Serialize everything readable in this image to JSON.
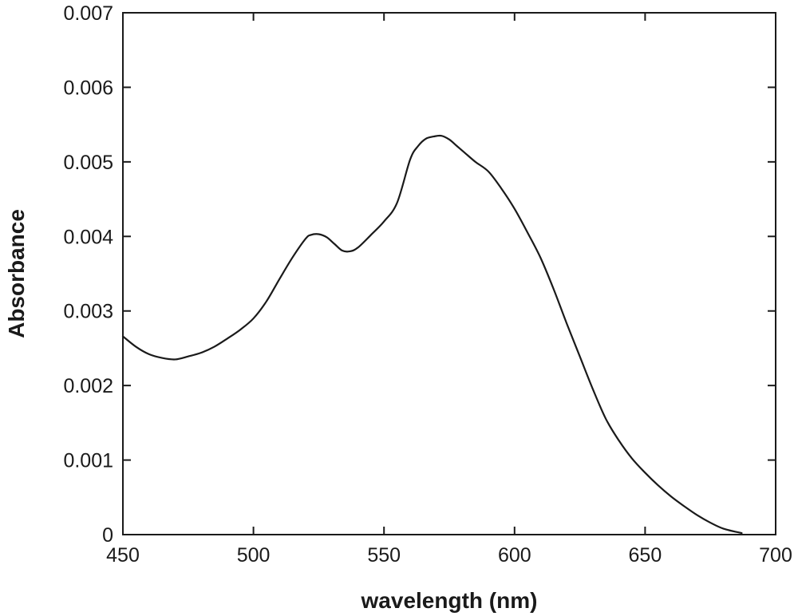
{
  "chart_data": {
    "type": "line",
    "title": "",
    "xlabel": "wavelength (nm)",
    "ylabel": "Absorbance",
    "xlim": [
      450,
      700
    ],
    "ylim": [
      0,
      0.007
    ],
    "x_ticks": [
      450,
      500,
      550,
      600,
      650,
      700
    ],
    "y_ticks": [
      0,
      0.001,
      0.002,
      0.003,
      0.004,
      0.005,
      0.006,
      0.007
    ],
    "x_tick_labels": [
      "450",
      "500",
      "550",
      "600",
      "650",
      "700"
    ],
    "y_tick_labels": [
      "0",
      "0.001",
      "0.002",
      "0.003",
      "0.004",
      "0.005",
      "0.006",
      "0.007"
    ],
    "grid": false,
    "legend": "none",
    "line_color": "#1a1a1a",
    "series": [
      {
        "x": [
          450,
          455,
          460,
          465,
          470,
          475,
          480,
          485,
          490,
          495,
          500,
          505,
          510,
          515,
          520,
          522,
          525,
          528,
          531,
          534,
          537,
          540,
          545,
          550,
          555,
          560,
          563,
          566,
          569,
          572,
          575,
          578,
          581,
          585,
          590,
          595,
          600,
          605,
          610,
          615,
          620,
          625,
          630,
          635,
          640,
          645,
          650,
          655,
          660,
          665,
          670,
          675,
          680,
          687
        ],
        "y": [
          0.00266,
          0.00252,
          0.00242,
          0.00237,
          0.00235,
          0.00239,
          0.00244,
          0.00252,
          0.00263,
          0.00275,
          0.0029,
          0.00313,
          0.00343,
          0.00372,
          0.00397,
          0.00402,
          0.00403,
          0.00399,
          0.0039,
          0.00381,
          0.0038,
          0.00385,
          0.00402,
          0.0042,
          0.00445,
          0.00503,
          0.00521,
          0.00531,
          0.00534,
          0.00535,
          0.0053,
          0.00521,
          0.00512,
          0.005,
          0.00487,
          0.00464,
          0.00437,
          0.00405,
          0.00371,
          0.00329,
          0.00283,
          0.00239,
          0.00195,
          0.00155,
          0.00126,
          0.00102,
          0.00083,
          0.00066,
          0.00051,
          0.00038,
          0.00026,
          0.00016,
          8e-05,
          2e-05
        ]
      }
    ]
  }
}
